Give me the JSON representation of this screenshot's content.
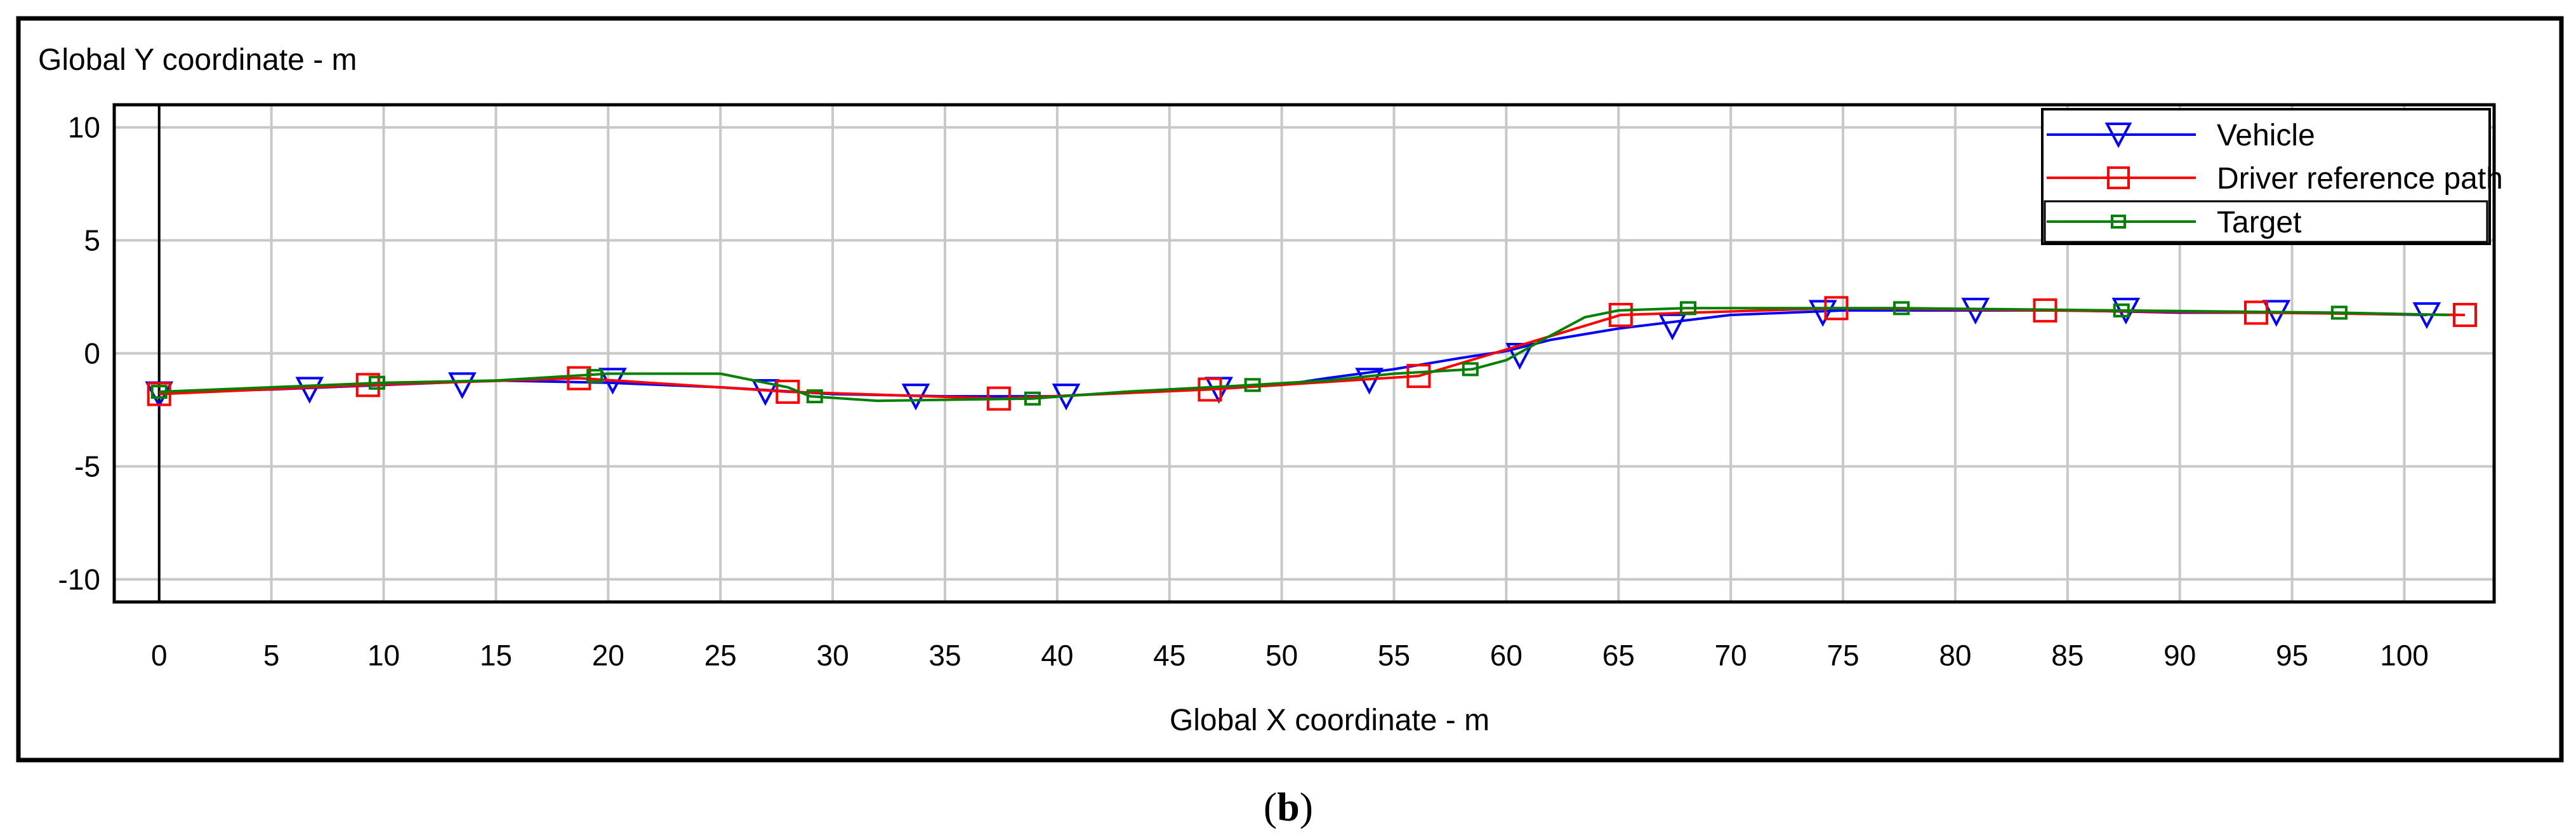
{
  "chart_data": {
    "type": "line",
    "ylabel": "Global Y coordinate - m",
    "xlabel": "Global X coordinate - m",
    "caption_open": "(",
    "caption_letter": "b",
    "caption_close": ")",
    "xlim": [
      -2,
      104
    ],
    "ylim": [
      -11,
      11
    ],
    "xticks": [
      0,
      5,
      10,
      15,
      20,
      25,
      30,
      35,
      40,
      45,
      50,
      55,
      60,
      65,
      70,
      75,
      80,
      85,
      90,
      95,
      100
    ],
    "yticks": [
      10,
      5,
      0,
      -5,
      -10
    ],
    "grid": true,
    "legend_position": "top-right",
    "colors": {
      "Vehicle": "#0000ff",
      "Driver reference path": "#ff0000",
      "Target": "#008000"
    },
    "series": [
      {
        "name": "Vehicle",
        "marker": "triangle-down",
        "x": [
          0,
          5,
          10,
          15,
          20,
          25,
          30,
          35,
          40,
          45,
          50,
          52,
          55,
          58,
          60,
          62,
          65,
          70,
          75,
          80,
          85,
          90,
          95,
          101
        ],
        "y": [
          -1.7,
          -1.6,
          -1.4,
          -1.2,
          -1.3,
          -1.5,
          -1.8,
          -1.9,
          -1.9,
          -1.6,
          -1.4,
          -1.1,
          -0.7,
          -0.2,
          0.1,
          0.6,
          1.1,
          1.7,
          1.9,
          1.9,
          1.9,
          1.8,
          1.8,
          1.7
        ],
        "markers_x": [
          0,
          6.7,
          13.5,
          20.2,
          27,
          33.7,
          40.4,
          47.2,
          53.9,
          60.6,
          67.4,
          74.1,
          80.9,
          87.6,
          94.3,
          101
        ],
        "markers_y": [
          -1.8,
          -1.6,
          -1.4,
          -1.2,
          -1.7,
          -1.9,
          -1.9,
          -1.6,
          -1.2,
          -0.1,
          1.2,
          1.8,
          1.9,
          1.9,
          1.8,
          1.7
        ]
      },
      {
        "name": "Driver reference path",
        "marker": "square",
        "x": [
          0,
          9.3,
          18.7,
          28,
          37.4,
          46.8,
          56.1,
          65.1,
          74.7,
          84,
          93.4,
          102.7
        ],
        "y": [
          -1.8,
          -1.4,
          -1.1,
          -1.7,
          -2.0,
          -1.6,
          -1.0,
          1.7,
          2.0,
          1.9,
          1.8,
          1.7
        ],
        "markers_x": [
          0,
          9.3,
          18.7,
          28,
          37.4,
          46.8,
          56.1,
          65.1,
          74.7,
          84,
          93.4,
          102.7
        ],
        "markers_y": [
          -1.8,
          -1.4,
          -1.1,
          -1.7,
          -2.0,
          -1.6,
          -1.0,
          1.7,
          2.0,
          1.9,
          1.8,
          1.7
        ]
      },
      {
        "name": "Target",
        "marker": "small-square",
        "x": [
          0,
          10,
          15,
          20,
          25,
          28,
          29,
          32,
          38.9,
          43,
          48.7,
          52,
          55,
          58.5,
          60,
          62,
          63.5,
          65,
          68,
          72,
          77.6,
          87.4,
          97.1,
          102
        ],
        "y": [
          -1.7,
          -1.3,
          -1.2,
          -0.9,
          -0.9,
          -1.5,
          -1.9,
          -2.1,
          -2.0,
          -1.7,
          -1.4,
          -1.2,
          -0.9,
          -0.7,
          -0.3,
          0.8,
          1.6,
          1.9,
          2.0,
          2.0,
          2.0,
          1.9,
          1.8,
          1.7
        ],
        "markers_x": [
          0,
          9.7,
          19.4,
          29.2,
          38.9,
          48.7,
          58.4,
          68.1,
          77.6,
          87.4,
          97.1
        ],
        "markers_y": [
          -1.7,
          -1.3,
          -1.0,
          -1.9,
          -2.0,
          -1.4,
          -0.7,
          2.0,
          2.0,
          1.9,
          1.8
        ]
      }
    ]
  }
}
